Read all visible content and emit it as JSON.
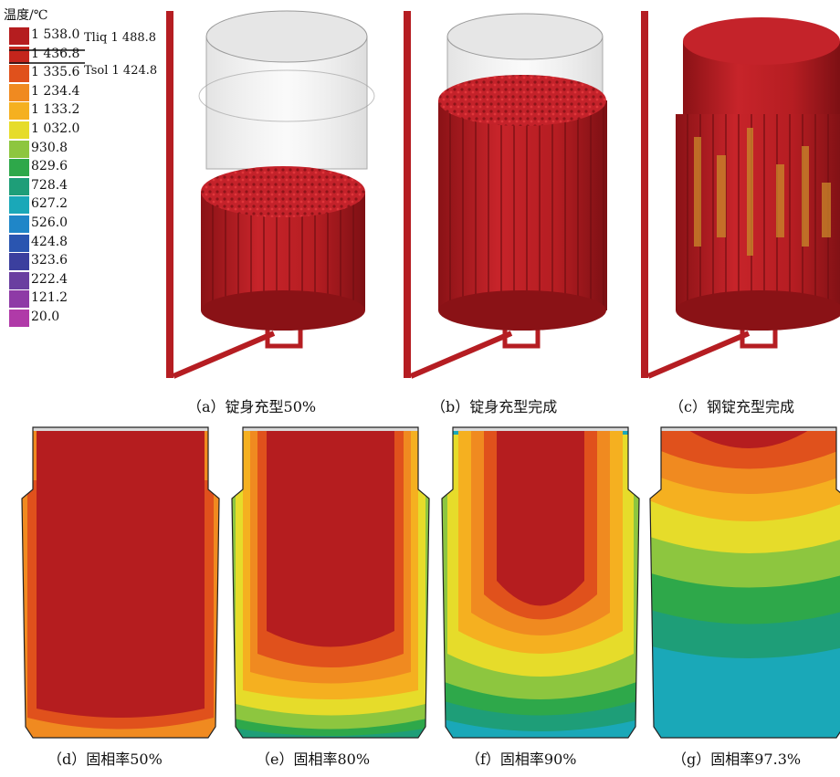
{
  "legend": {
    "title": "温度/℃",
    "entries": [
      {
        "value": "1 538.0",
        "color": "#b51d1f"
      },
      {
        "value": "1 436.8",
        "color": "#c4251c"
      },
      {
        "value": "1 335.6",
        "color": "#e0511c"
      },
      {
        "value": "1 234.4",
        "color": "#f08a20"
      },
      {
        "value": "1 133.2",
        "color": "#f5b020"
      },
      {
        "value": "1 032.0",
        "color": "#e6dc2a"
      },
      {
        "value": "930.8",
        "color": "#8dc63f"
      },
      {
        "value": "829.6",
        "color": "#2ea84a"
      },
      {
        "value": "728.4",
        "color": "#1e9e78"
      },
      {
        "value": "627.2",
        "color": "#1aa8b8"
      },
      {
        "value": "526.0",
        "color": "#1f86c8"
      },
      {
        "value": "424.8",
        "color": "#2a55b0"
      },
      {
        "value": "323.6",
        "color": "#3b3f9e"
      },
      {
        "value": "222.4",
        "color": "#6a3fa0"
      },
      {
        "value": "121.2",
        "color": "#8e3aa6"
      },
      {
        "value": "20.0",
        "color": "#b03aa8"
      }
    ],
    "markers": [
      {
        "label": "Tliq 1 488.8"
      },
      {
        "label": "Tsol 1 424.8"
      }
    ]
  },
  "panels_top": [
    {
      "id": "a",
      "caption": "（a）锭身充型50%"
    },
    {
      "id": "b",
      "caption": "（b）锭身充型完成"
    },
    {
      "id": "c",
      "caption": "（c）钢锭充型完成"
    }
  ],
  "panels_bottom": [
    {
      "id": "d",
      "caption": "（d）固相率50%"
    },
    {
      "id": "e",
      "caption": "（e）固相率80%"
    },
    {
      "id": "f",
      "caption": "（f）固相率90%"
    },
    {
      "id": "g",
      "caption": "（g）固相率97.3%"
    }
  ]
}
